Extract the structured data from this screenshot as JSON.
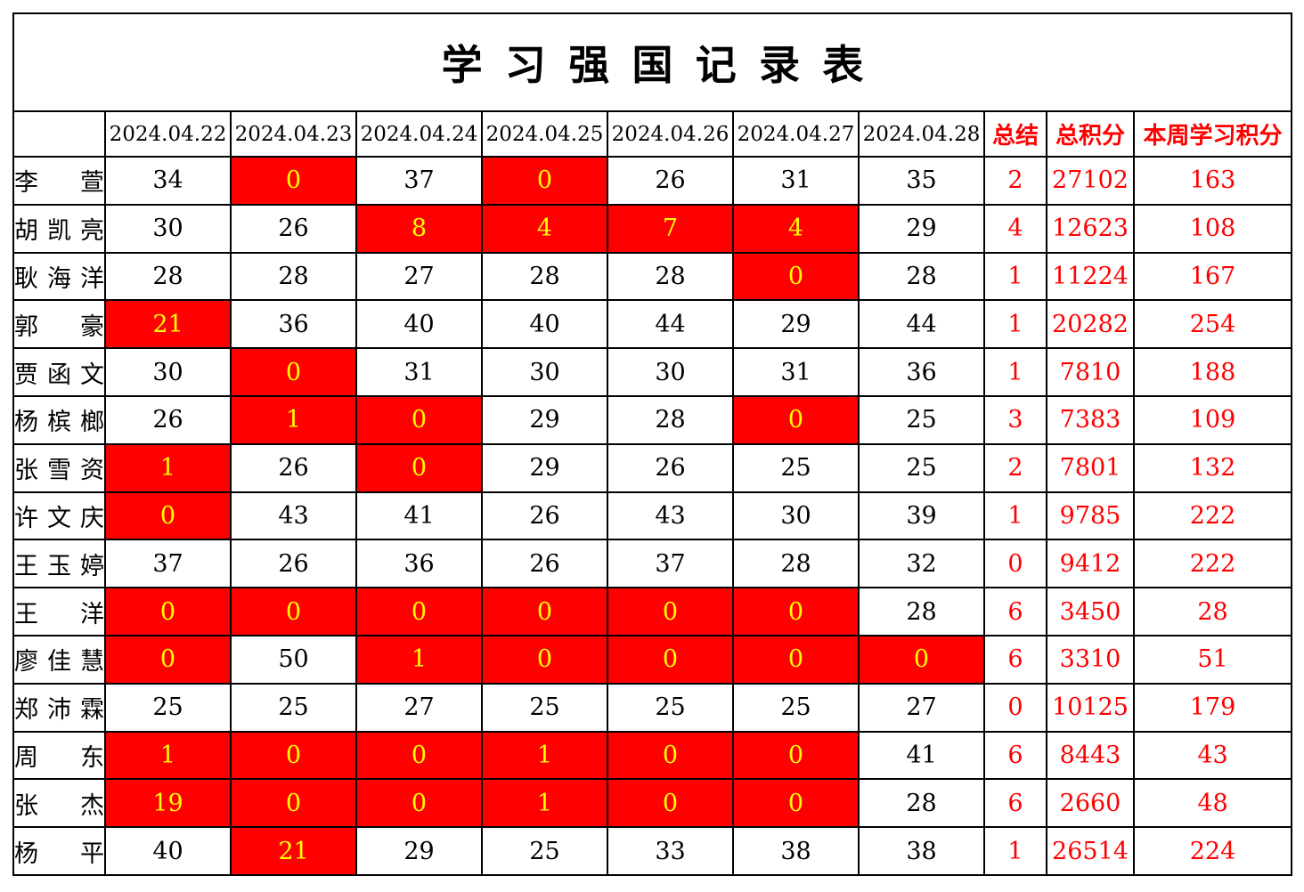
{
  "title": "学习强国记录表",
  "header": {
    "name_col": "",
    "date_cols": [
      "2024.04.22",
      "2024.04.23",
      "2024.04.24",
      "2024.04.25",
      "2024.04.26",
      "2024.04.27",
      "2024.04.28"
    ],
    "summary_col": "总结",
    "total_col": "总积分",
    "week_col": "本周学习积分"
  },
  "colors": {
    "highlight_bg": "#FF0000",
    "highlight_text": "#FFFF00",
    "accent_text": "#FF0000",
    "grid_border": "#000000",
    "text": "#000000"
  },
  "rows": [
    {
      "name": "李萱",
      "days": [
        {
          "v": "34"
        },
        {
          "v": "0",
          "hl": true
        },
        {
          "v": "37"
        },
        {
          "v": "0",
          "hl": true
        },
        {
          "v": "26"
        },
        {
          "v": "31"
        },
        {
          "v": "35"
        }
      ],
      "summary": "2",
      "total": "27102",
      "week": "163"
    },
    {
      "name": "胡凯亮",
      "days": [
        {
          "v": "30"
        },
        {
          "v": "26"
        },
        {
          "v": "8",
          "hl": true
        },
        {
          "v": "4",
          "hl": true
        },
        {
          "v": "7",
          "hl": true
        },
        {
          "v": "4",
          "hl": true
        },
        {
          "v": "29"
        }
      ],
      "summary": "4",
      "total": "12623",
      "week": "108"
    },
    {
      "name": "耿海洋",
      "days": [
        {
          "v": "28"
        },
        {
          "v": "28"
        },
        {
          "v": "27"
        },
        {
          "v": "28"
        },
        {
          "v": "28"
        },
        {
          "v": "0",
          "hl": true
        },
        {
          "v": "28"
        }
      ],
      "summary": "1",
      "total": "11224",
      "week": "167"
    },
    {
      "name": "郭豪",
      "days": [
        {
          "v": "21",
          "hl": true
        },
        {
          "v": "36"
        },
        {
          "v": "40"
        },
        {
          "v": "40"
        },
        {
          "v": "44"
        },
        {
          "v": "29"
        },
        {
          "v": "44"
        }
      ],
      "summary": "1",
      "total": "20282",
      "week": "254"
    },
    {
      "name": "贾函文",
      "days": [
        {
          "v": "30"
        },
        {
          "v": "0",
          "hl": true
        },
        {
          "v": "31"
        },
        {
          "v": "30"
        },
        {
          "v": "30"
        },
        {
          "v": "31"
        },
        {
          "v": "36"
        }
      ],
      "summary": "1",
      "total": "7810",
      "week": "188"
    },
    {
      "name": "杨槟榔",
      "days": [
        {
          "v": "26"
        },
        {
          "v": "1",
          "hl": true
        },
        {
          "v": "0",
          "hl": true
        },
        {
          "v": "29"
        },
        {
          "v": "28"
        },
        {
          "v": "0",
          "hl": true
        },
        {
          "v": "25"
        }
      ],
      "summary": "3",
      "total": "7383",
      "week": "109"
    },
    {
      "name": "张雪资",
      "days": [
        {
          "v": "1",
          "hl": true
        },
        {
          "v": "26"
        },
        {
          "v": "0",
          "hl": true
        },
        {
          "v": "29"
        },
        {
          "v": "26"
        },
        {
          "v": "25"
        },
        {
          "v": "25"
        }
      ],
      "summary": "2",
      "total": "7801",
      "week": "132"
    },
    {
      "name": "许文庆",
      "days": [
        {
          "v": "0",
          "hl": true
        },
        {
          "v": "43"
        },
        {
          "v": "41"
        },
        {
          "v": "26"
        },
        {
          "v": "43"
        },
        {
          "v": "30"
        },
        {
          "v": "39"
        }
      ],
      "summary": "1",
      "total": "9785",
      "week": "222"
    },
    {
      "name": "王玉婷",
      "days": [
        {
          "v": "37"
        },
        {
          "v": "26"
        },
        {
          "v": "36"
        },
        {
          "v": "26"
        },
        {
          "v": "37"
        },
        {
          "v": "28"
        },
        {
          "v": "32"
        }
      ],
      "summary": "0",
      "total": "9412",
      "week": "222"
    },
    {
      "name": "王洋",
      "days": [
        {
          "v": "0",
          "hl": true
        },
        {
          "v": "0",
          "hl": true
        },
        {
          "v": "0",
          "hl": true
        },
        {
          "v": "0",
          "hl": true
        },
        {
          "v": "0",
          "hl": true
        },
        {
          "v": "0",
          "hl": true
        },
        {
          "v": "28"
        }
      ],
      "summary": "6",
      "total": "3450",
      "week": "28"
    },
    {
      "name": "廖佳慧",
      "days": [
        {
          "v": "0",
          "hl": true
        },
        {
          "v": "50"
        },
        {
          "v": "1",
          "hl": true
        },
        {
          "v": "0",
          "hl": true
        },
        {
          "v": "0",
          "hl": true
        },
        {
          "v": "0",
          "hl": true
        },
        {
          "v": "0",
          "hl": true
        }
      ],
      "summary": "6",
      "total": "3310",
      "week": "51"
    },
    {
      "name": "郑沛霖",
      "days": [
        {
          "v": "25"
        },
        {
          "v": "25"
        },
        {
          "v": "27"
        },
        {
          "v": "25"
        },
        {
          "v": "25"
        },
        {
          "v": "25"
        },
        {
          "v": "27"
        }
      ],
      "summary": "0",
      "total": "10125",
      "week": "179"
    },
    {
      "name": "周东",
      "days": [
        {
          "v": "1",
          "hl": true
        },
        {
          "v": "0",
          "hl": true
        },
        {
          "v": "0",
          "hl": true
        },
        {
          "v": "1",
          "hl": true
        },
        {
          "v": "0",
          "hl": true
        },
        {
          "v": "0",
          "hl": true
        },
        {
          "v": "41"
        }
      ],
      "summary": "6",
      "total": "8443",
      "week": "43"
    },
    {
      "name": "张杰",
      "days": [
        {
          "v": "19",
          "hl": true
        },
        {
          "v": "0",
          "hl": true
        },
        {
          "v": "0",
          "hl": true
        },
        {
          "v": "1",
          "hl": true
        },
        {
          "v": "0",
          "hl": true
        },
        {
          "v": "0",
          "hl": true
        },
        {
          "v": "28"
        }
      ],
      "summary": "6",
      "total": "2660",
      "week": "48"
    },
    {
      "name": "杨平",
      "days": [
        {
          "v": "40"
        },
        {
          "v": "21",
          "hl": true
        },
        {
          "v": "29"
        },
        {
          "v": "25"
        },
        {
          "v": "33"
        },
        {
          "v": "38"
        },
        {
          "v": "38"
        }
      ],
      "summary": "1",
      "total": "26514",
      "week": "224"
    }
  ]
}
